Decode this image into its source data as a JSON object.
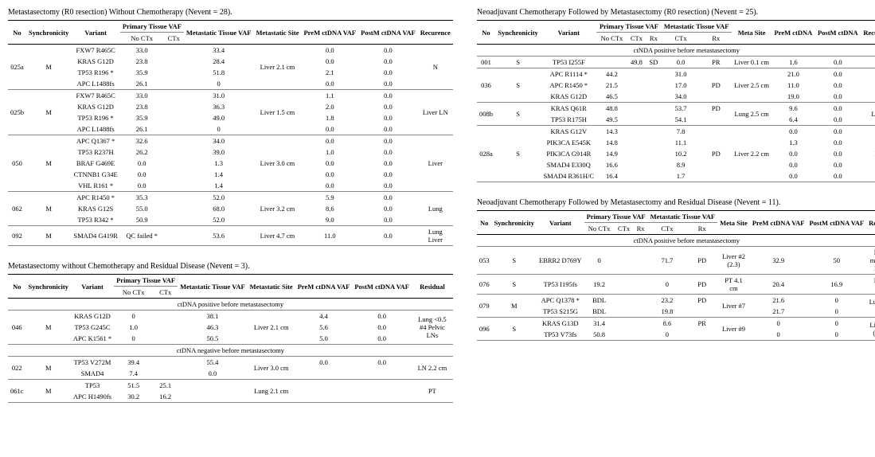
{
  "tables": {
    "a": {
      "title": "Metastasectomy (R0 resection) Without Chemotherapy (Nevent = 28).",
      "headers": {
        "no": "No",
        "sync": "Synchronicity",
        "variant": "Variant",
        "pt": "Primary Tissue VAF",
        "noctx": "No CTx",
        "ctx": "CTx",
        "mt": "Metastatic Tissue VAF",
        "site": "Metastatic Site",
        "prem": "PreM ctDNA VAF",
        "postm": "PostM ctDNA VAF",
        "rec": "Recurence"
      },
      "groups": [
        {
          "no": "025a",
          "sync": "M",
          "site": "Liver 2.1 cm",
          "rec": "N",
          "rows": [
            {
              "v": "FXW7 R465C",
              "noctx": "33.0",
              "ctx": "",
              "mt": "33.4",
              "pre": "0.0",
              "post": "0.0"
            },
            {
              "v": "KRAS G12D",
              "noctx": "23.8",
              "ctx": "",
              "mt": "28.4",
              "pre": "0.0",
              "post": "0.0"
            },
            {
              "v": "TP53 R196 *",
              "noctx": "35.9",
              "ctx": "",
              "mt": "51.8",
              "pre": "2.1",
              "post": "0.0"
            },
            {
              "v": "APC L1488fs",
              "noctx": "26.1",
              "ctx": "",
              "mt": "0",
              "pre": "0.0",
              "post": "0.0"
            }
          ]
        },
        {
          "no": "025b",
          "sync": "M",
          "site": "Liver 1.5 cm",
          "rec": "Liver LN",
          "rows": [
            {
              "v": "FXW7 R465C",
              "noctx": "33.0",
              "ctx": "",
              "mt": "31.0",
              "pre": "1.1",
              "post": "0.0"
            },
            {
              "v": "KRAS G12D",
              "noctx": "23.8",
              "ctx": "",
              "mt": "36.3",
              "pre": "2.0",
              "post": "0.0"
            },
            {
              "v": "TP53 R196 *",
              "noctx": "35.9",
              "ctx": "",
              "mt": "49.0",
              "pre": "1.8",
              "post": "0.0"
            },
            {
              "v": "APC L1488fs",
              "noctx": "26.1",
              "ctx": "",
              "mt": "0",
              "pre": "0.0",
              "post": "0.0"
            }
          ]
        },
        {
          "no": "050",
          "sync": "M",
          "site": "Liver 3.0 cm",
          "rec": "Liver",
          "rows": [
            {
              "v": "APC Q1367 *",
              "noctx": "32.6",
              "ctx": "",
              "mt": "34.0",
              "pre": "0.0",
              "post": "0.0"
            },
            {
              "v": "TP53 R237H",
              "noctx": "26.2",
              "ctx": "",
              "mt": "39.0",
              "pre": "1.0",
              "post": "0.0"
            },
            {
              "v": "BRAF G469E",
              "noctx": "0.0",
              "ctx": "",
              "mt": "1.3",
              "pre": "0.0",
              "post": "0.0"
            },
            {
              "v": "CTNNB1 G34E",
              "noctx": "0.0",
              "ctx": "",
              "mt": "1.4",
              "pre": "0.0",
              "post": "0.0"
            },
            {
              "v": "VHL R161 *",
              "noctx": "0.0",
              "ctx": "",
              "mt": "1.4",
              "pre": "0.0",
              "post": "0.0"
            }
          ]
        },
        {
          "no": "062",
          "sync": "M",
          "site": "Liver 3.2 cm",
          "rec": "Lung",
          "rows": [
            {
              "v": "APC R1450 *",
              "noctx": "35.3",
              "ctx": "",
              "mt": "52.0",
              "pre": "5.9",
              "post": "0.0"
            },
            {
              "v": "KRAS G12S",
              "noctx": "55.0",
              "ctx": "",
              "mt": "68.0",
              "pre": "8.6",
              "post": "0.0"
            },
            {
              "v": "TP53 R342 *",
              "noctx": "50.9",
              "ctx": "",
              "mt": "52.0",
              "pre": "9.0",
              "post": "0.0"
            }
          ]
        },
        {
          "no": "092",
          "sync": "M",
          "site": "Liver 4.7 cm",
          "rec": "Lung Liver",
          "rows": [
            {
              "v": "SMAD4 G419R",
              "noctx": "QC failed *",
              "ctx": "",
              "mt": "53.6",
              "pre": "11.0",
              "post": "0.0"
            }
          ]
        }
      ]
    },
    "b": {
      "title": "Neoadjuvant Chemotherapy Followed by Metastasectomy (R0 resection) (Nevent = 25).",
      "headers": {
        "no": "No",
        "sync": "Synchronicity",
        "variant": "Variant",
        "pt": "Primary Tissue VAF",
        "noctx": "No CTx",
        "ctx": "CTx",
        "rx": "Rx",
        "mt": "Metastatic Tissue VAF",
        "mctx": "CTx",
        "mrx": "Rx",
        "site": "Meta Site",
        "prem": "PreM ctDNA",
        "postm": "PostM ctDNA",
        "rec": "Recurence"
      },
      "section": "ctNDA positive before metastasectomy",
      "groups": [
        {
          "no": "001",
          "sync": "S",
          "site": "Liver 0.1 cm",
          "rec": "N",
          "rows": [
            {
              "v": "TP53 I255F",
              "noctx": "",
              "ctx": "49.8",
              "rx": "SD",
              "mctx": "0.0",
              "mrx": "PR",
              "pre": "1.6",
              "post": "0.0"
            }
          ]
        },
        {
          "no": "036",
          "sync": "S",
          "site": "Liver 2.5 cm",
          "rec": "N",
          "rows": [
            {
              "v": "APC R1114 *",
              "noctx": "44.2",
              "ctx": "",
              "rx": "",
              "mctx": "31.0",
              "mrx": "",
              "pre": "21.0",
              "post": "0.0"
            },
            {
              "v": "APC R1450 *",
              "noctx": "21.5",
              "ctx": "",
              "rx": "",
              "mctx": "17.0",
              "mrx": "PD",
              "pre": "11.0",
              "post": "0.0"
            },
            {
              "v": "KRAS G12D",
              "noctx": "46.5",
              "ctx": "",
              "rx": "",
              "mctx": "34.0",
              "mrx": "",
              "pre": "19.0",
              "post": "0.0"
            }
          ]
        },
        {
          "no": "008b",
          "sync": "S",
          "site": "Lung 2.5 cm",
          "rec": "Lung",
          "rows": [
            {
              "v": "KRAS Q61R",
              "noctx": "48.8",
              "ctx": "",
              "rx": "",
              "mctx": "53.7",
              "mrx": "PD",
              "pre": "9.6",
              "post": "0.0"
            },
            {
              "v": "TP53 R175H",
              "noctx": "49.5",
              "ctx": "",
              "rx": "",
              "mctx": "54.1",
              "mrx": "",
              "pre": "6.4",
              "post": "0.0"
            }
          ]
        },
        {
          "no": "028a",
          "sync": "S",
          "site": "Liver 2.2 cm",
          "rec": "PT",
          "rows": [
            {
              "v": "KRAS G12V",
              "noctx": "14.3",
              "ctx": "",
              "rx": "",
              "mctx": "7.8",
              "mrx": "",
              "pre": "0.0",
              "post": "0.0"
            },
            {
              "v": "PIK3CA E545K",
              "noctx": "14.8",
              "ctx": "",
              "rx": "",
              "mctx": "11.1",
              "mrx": "",
              "pre": "1.3",
              "post": "0.0"
            },
            {
              "v": "PIK3CA G914R",
              "noctx": "14.9",
              "ctx": "",
              "rx": "",
              "mctx": "10.2",
              "mrx": "PD",
              "pre": "0.0",
              "post": "0.0"
            },
            {
              "v": "SMAD4 E330Q",
              "noctx": "16.6",
              "ctx": "",
              "rx": "",
              "mctx": "8.9",
              "mrx": "",
              "pre": "0.0",
              "post": "0.0"
            },
            {
              "v": "SMAD4 R361H/C",
              "noctx": "16.4",
              "ctx": "",
              "rx": "",
              "mctx": "1.7",
              "mrx": "",
              "pre": "0.0",
              "post": "0.0"
            }
          ]
        }
      ]
    },
    "c": {
      "title": "Metastasectomy without Chemotherapy and Residual Disease (Nevent = 3).",
      "headers": {
        "no": "No",
        "sync": "Synchronicity",
        "variant": "Variant",
        "pt": "Primary Tissue VAF",
        "noctx": "No CTx",
        "ctx": "CTx",
        "mt": "Metastatic Tissue VAF",
        "site": "Metastatic Site",
        "prem": "PreM ctDNA VAF",
        "postm": "PostM ctDNA VAF",
        "res": "Residual"
      },
      "sec1": "ctDNA positive before metastasectomy",
      "sec2": "ctDNA negative before metastasectomy",
      "groups1": [
        {
          "no": "046",
          "sync": "M",
          "site": "Liver 2.1 cm",
          "rec": "Lung <0.5 #4 Pelvic LNs",
          "rows": [
            {
              "v": "KRAS G12D",
              "noctx": "0",
              "ctx": "",
              "mt": "38.1",
              "pre": "4.4",
              "post": "0.0"
            },
            {
              "v": "TP53 G245C",
              "noctx": "1.0",
              "ctx": "",
              "mt": "46.3",
              "pre": "5.6",
              "post": "0.0"
            },
            {
              "v": "APC K1561 *",
              "noctx": "0",
              "ctx": "",
              "mt": "50.5",
              "pre": "5.0",
              "post": "0.0"
            }
          ]
        }
      ],
      "groups2": [
        {
          "no": "022",
          "sync": "M",
          "site": "Liver 3.0 cm",
          "rec": "LN 2.2 cm",
          "rows": [
            {
              "v": "TP53 V272M",
              "noctx": "39.4",
              "ctx": "",
              "mt": "55.4",
              "pre": "0.0",
              "post": "0.0"
            },
            {
              "v": "SMAD4",
              "noctx": "7.4",
              "ctx": "",
              "mt": "0.0",
              "pre": "",
              "post": ""
            }
          ]
        },
        {
          "no": "061c",
          "sync": "M",
          "site": "Lung 2.1 cm",
          "rec": "PT",
          "rows": [
            {
              "v": "TP53",
              "noctx": "51.5",
              "ctx": "25.1",
              "mt": "",
              "pre": "",
              "post": ""
            },
            {
              "v": "APC H1490fs",
              "noctx": "30.2",
              "ctx": "16.2",
              "mt": "",
              "pre": "",
              "post": ""
            }
          ]
        }
      ]
    },
    "d": {
      "title": "Neoadjuvant Chemotherapy Followed by Metastasectomy and Residual Disease (Nevent = 11).",
      "headers": {
        "no": "No",
        "sync": "Synchronicity",
        "variant": "Variant",
        "pt": "Primary Tissue VAF",
        "noctx": "No CTx",
        "ctx": "CTx",
        "rx": "Rx",
        "mt": "Metastatic Tissue VAF",
        "mctx": "CTx",
        "mrx": "Rx",
        "site": "Meta Site",
        "prem": "PreM ctDNA VAF",
        "postm": "PostM ctDNA VAF",
        "res": "Residual"
      },
      "section": "ctDNA positive before metastasectomy",
      "groups": [
        {
          "no": "053",
          "sync": "S",
          "site": "Liver #2 (2.3)",
          "rec": "Liver multiple Bone",
          "rows": [
            {
              "v": "EBRR2 D769Y",
              "noctx": "0",
              "ctx": "",
              "rx": "",
              "mctx": "71.7",
              "mrx": "PD",
              "pre": "32.9",
              "post": "50"
            }
          ]
        },
        {
          "no": "076",
          "sync": "S",
          "site": "PT 4.1 cm",
          "rec": "Huge liver",
          "rows": [
            {
              "v": "TP53 I195fs",
              "noctx": "19.2",
              "ctx": "",
              "rx": "",
              "mctx": "0",
              "mrx": "PD",
              "pre": "20.4",
              "post": "16.9"
            }
          ]
        },
        {
          "no": "079",
          "sync": "M",
          "site": "Liver #7",
          "rec": "Lung 0.9 cm",
          "rows": [
            {
              "v": "APC Q1378 *",
              "noctx": "BDL",
              "ctx": "",
              "rx": "",
              "mctx": "23.2",
              "mrx": "PD",
              "pre": "21.6",
              "post": "0"
            },
            {
              "v": "TP53 S215G",
              "noctx": "BDL",
              "ctx": "",
              "rx": "",
              "mctx": "19.8",
              "mrx": "",
              "pre": "21.7",
              "post": "0"
            }
          ]
        },
        {
          "no": "096",
          "sync": "S",
          "site": "Liver #9",
          "rec": "Liver #2 (<0.5)",
          "rows": [
            {
              "v": "KRAS G13D",
              "noctx": "31.4",
              "ctx": "",
              "rx": "",
              "mctx": "8.6",
              "mrx": "PR",
              "pre": "0",
              "post": "0"
            },
            {
              "v": "TP53 V73fs",
              "noctx": "50.8",
              "ctx": "",
              "rx": "",
              "mctx": "0",
              "mrx": "",
              "pre": "0",
              "post": "0"
            }
          ]
        }
      ]
    }
  }
}
